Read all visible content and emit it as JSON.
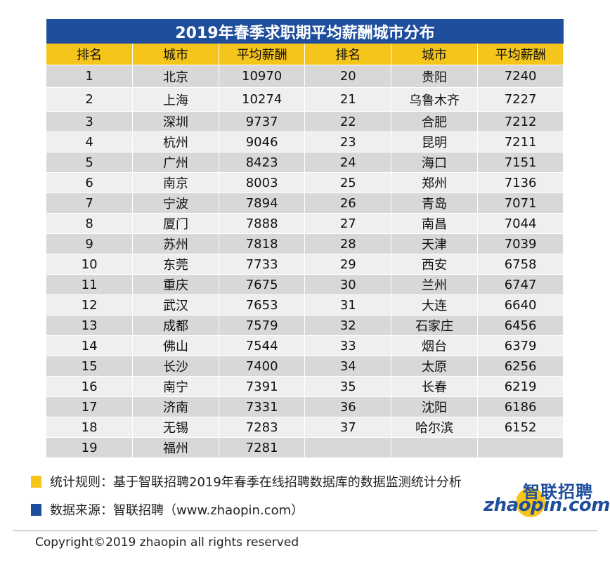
{
  "title": "2019年春季求职期平均薪酬城市分布",
  "headers": [
    "排名",
    "城市",
    "平均薪酬",
    "排名",
    "城市",
    "平均薪酬"
  ],
  "rows": [
    [
      "1",
      "北京",
      "10970",
      "20",
      "贵阳",
      "7240"
    ],
    [
      "2",
      "上海",
      "10274",
      "21",
      "乌鲁木齐",
      "7227"
    ],
    [
      "3",
      "深圳",
      "9737",
      "22",
      "合肥",
      "7212"
    ],
    [
      "4",
      "杭州",
      "9046",
      "23",
      "昆明",
      "7211"
    ],
    [
      "5",
      "广州",
      "8423",
      "24",
      "海口",
      "7151"
    ],
    [
      "6",
      "南京",
      "8003",
      "25",
      "郑州",
      "7136"
    ],
    [
      "7",
      "宁波",
      "7894",
      "26",
      "青岛",
      "7071"
    ],
    [
      "8",
      "厦门",
      "7888",
      "27",
      "南昌",
      "7044"
    ],
    [
      "9",
      "苏州",
      "7818",
      "28",
      "天津",
      "7039"
    ],
    [
      "10",
      "东莞",
      "7733",
      "29",
      "西安",
      "6758"
    ],
    [
      "11",
      "重庆",
      "7675",
      "30",
      "兰州",
      "6747"
    ],
    [
      "12",
      "武汉",
      "7653",
      "31",
      "大连",
      "6640"
    ],
    [
      "13",
      "成都",
      "7579",
      "32",
      "石家庄",
      "6456"
    ],
    [
      "14",
      "佛山",
      "7544",
      "33",
      "烟台",
      "6379"
    ],
    [
      "15",
      "长沙",
      "7400",
      "34",
      "太原",
      "6256"
    ],
    [
      "16",
      "南宁",
      "7391",
      "35",
      "长春",
      "6219"
    ],
    [
      "17",
      "济南",
      "7331",
      "36",
      "沈阳",
      "6186"
    ],
    [
      "18",
      "无锡",
      "7283",
      "37",
      "哈尔滨",
      "6152"
    ],
    [
      "19",
      "福州",
      "7281",
      "",
      "",
      ""
    ]
  ],
  "notes": {
    "rule": "统计规则：基于智联招聘2019年春季在线招聘数据库的数据监测统计分析",
    "source": "数据来源：智联招聘（www.zhaopin.com）",
    "rule_color": "#f6c51b",
    "source_color": "#1f4e9c"
  },
  "logo": {
    "cn": "智联招聘",
    "en": "zhaopin.com"
  },
  "colors": {
    "title_bg": "#1f4e9c",
    "header_bg": "#f6c51b",
    "row_dark": "#d8d8d8",
    "row_light": "#efefef"
  },
  "copyright": "Copyright©2019 zhaopin all rights reserved"
}
